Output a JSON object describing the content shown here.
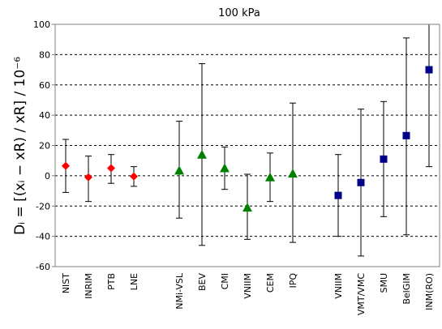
{
  "chart_data": {
    "type": "scatter",
    "title": "100 kPa",
    "ylabel": "Dᵢ = [(xᵢ − xR) / xR] / 10⁻⁶",
    "ylim": [
      -60,
      100
    ],
    "yticks": [
      -60,
      -40,
      -20,
      0,
      20,
      40,
      60,
      80,
      100
    ],
    "grid": "horizontal dashed",
    "error_bars": true,
    "categories": [
      "NIST",
      "INRIM",
      "PTB",
      "LNE",
      "NMi-VSL",
      "BEV",
      "CMI",
      "VNIIM",
      "CEM",
      "IPQ",
      "VNIIM",
      "VMT/VMC",
      "SMU",
      "BelGIM",
      "INM(RO)"
    ],
    "series": [
      {
        "marker": "diamond",
        "color": "#ff0000",
        "points": [
          {
            "category": "NIST",
            "value": 6.5,
            "low": -11,
            "high": 24
          },
          {
            "category": "INRIM",
            "value": -1,
            "low": -17,
            "high": 13
          },
          {
            "category": "PTB",
            "value": 5,
            "low": -5,
            "high": 14
          },
          {
            "category": "LNE",
            "value": -0.5,
            "low": -7,
            "high": 6
          }
        ]
      },
      {
        "marker": "triangle",
        "color": "#008000",
        "points": [
          {
            "category": "NMi-VSL",
            "value": 3.5,
            "low": -28,
            "high": 36
          },
          {
            "category": "BEV",
            "value": 14,
            "low": -46,
            "high": 74
          },
          {
            "category": "CMI",
            "value": 5,
            "low": -9,
            "high": 19
          },
          {
            "category": "VNIIM",
            "value": -21,
            "low": -42,
            "high": 1
          },
          {
            "category": "CEM",
            "value": -1,
            "low": -17,
            "high": 15
          },
          {
            "category": "IPQ",
            "value": 1.5,
            "low": -44,
            "high": 48
          }
        ]
      },
      {
        "marker": "square",
        "color": "#00008b",
        "points": [
          {
            "category": "VNIIM",
            "value": -13,
            "low": -40,
            "high": 14
          },
          {
            "category": "VMT/VMC",
            "value": -4.5,
            "low": -53,
            "high": 44
          },
          {
            "category": "SMU",
            "value": 11,
            "low": -27,
            "high": 49
          },
          {
            "category": "BelGIM",
            "value": 26.5,
            "low": -39,
            "high": 91
          },
          {
            "category": "INM(RO)",
            "value": 70,
            "low": 6,
            "high": 103
          }
        ]
      }
    ]
  }
}
